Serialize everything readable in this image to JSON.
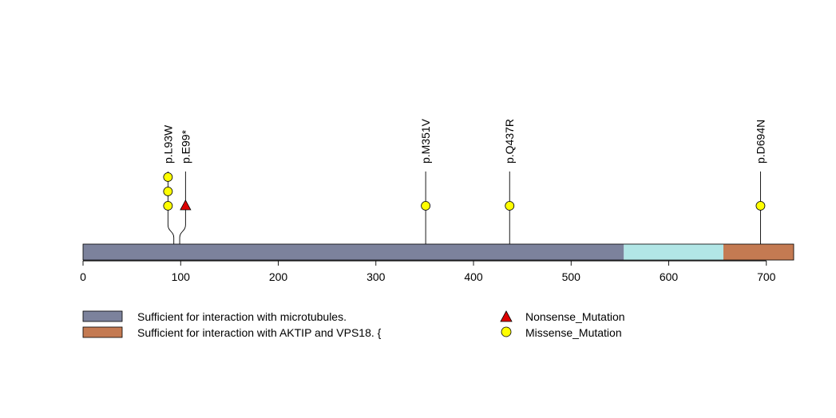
{
  "chart_data": {
    "type": "lollipop",
    "protein_length": 728,
    "xlim": [
      0,
      728
    ],
    "x_ticks": [
      0,
      100,
      200,
      300,
      400,
      500,
      600,
      700
    ],
    "domains": [
      {
        "start": 1,
        "end": 554,
        "color": "#7c829c",
        "name": "Sufficient for interaction with microtubules."
      },
      {
        "start": 555,
        "end": 656,
        "color": "#b2e6e6",
        "name": ""
      },
      {
        "start": 657,
        "end": 728,
        "color": "#c47a52",
        "name": "Sufficient for interaction with AKTIP and VPS18. {"
      }
    ],
    "mutations": [
      {
        "label": "p.L93W",
        "position": 93,
        "count": 3,
        "type": "Missense_Mutation"
      },
      {
        "label": "p.E99*",
        "position": 99,
        "count": 1,
        "type": "Nonsense_Mutation"
      },
      {
        "label": "p.M351V",
        "position": 351,
        "count": 1,
        "type": "Missense_Mutation"
      },
      {
        "label": "p.Q437R",
        "position": 437,
        "count": 1,
        "type": "Missense_Mutation"
      },
      {
        "label": "p.D694N",
        "position": 694,
        "count": 1,
        "type": "Missense_Mutation"
      }
    ],
    "mutation_legend": [
      {
        "type": "Nonsense_Mutation",
        "shape": "triangle",
        "color": "#dd0000"
      },
      {
        "type": "Missense_Mutation",
        "shape": "circle",
        "color": "#ffff00"
      }
    ]
  },
  "legend": {
    "domain_items": [
      {
        "label": "Sufficient for interaction with microtubules.",
        "color": "#7c829c"
      },
      {
        "label": "Sufficient for interaction with AKTIP and VPS18. {",
        "color": "#c47a52"
      }
    ],
    "mutation_items": [
      {
        "label": "Nonsense_Mutation",
        "shape": "triangle",
        "color": "#dd0000"
      },
      {
        "label": "Missense_Mutation",
        "shape": "circle",
        "color": "#ffff00"
      }
    ]
  }
}
